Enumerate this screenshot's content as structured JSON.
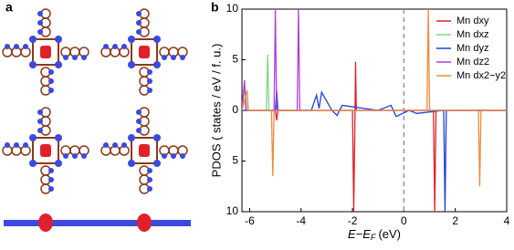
{
  "panel_labels": [
    "a",
    "b"
  ],
  "chart_data": {
    "type": "line",
    "y_label": "PDOS ( states / eV / f. u.)",
    "x_label": {
      "main": "E−E",
      "sub": "F",
      "unit": "(eV)"
    },
    "xlim": [
      -6.3,
      4
    ],
    "xticks": [
      -6,
      -4,
      -2,
      0,
      2,
      4
    ],
    "ylim": [
      -10,
      10
    ],
    "yticks": [
      {
        "value": -10,
        "label": "10"
      },
      {
        "value": -5,
        "label": "5"
      },
      0,
      5,
      10
    ],
    "reference_line_x": 0,
    "legend": "upper right",
    "series": [
      {
        "name": "Mn dxy",
        "color": "#e0202a",
        "x": [
          -6.3,
          -5.0,
          -4.95,
          -4.9,
          -2.0,
          -1.95,
          -1.9,
          -1.88,
          -1.85,
          1.15,
          1.2,
          1.25,
          4
        ],
        "values": [
          0,
          0,
          -1,
          0,
          0,
          -10,
          0,
          4.8,
          0,
          0,
          -10,
          0,
          0
        ]
      },
      {
        "name": "Mn dxz",
        "color": "#7ed97e",
        "x": [
          -6.3,
          -6.2,
          -6.1,
          -5.35,
          -5.3,
          -5.25,
          4
        ],
        "values": [
          0,
          2.5,
          0,
          0,
          5.5,
          0,
          0
        ]
      },
      {
        "name": "Mn dyz",
        "color": "#2040e0",
        "x": [
          -6.3,
          -5.0,
          -4.95,
          -4.9,
          -3.6,
          -3.4,
          -3.3,
          -3.2,
          -2.8,
          -2.6,
          -2.4,
          -1.0,
          -0.5,
          -0.3,
          0.2,
          0.5,
          1.55,
          1.6,
          1.65,
          4
        ],
        "values": [
          0,
          0,
          2,
          0,
          0,
          1.5,
          0.2,
          1.8,
          0,
          -0.5,
          0.5,
          0,
          0.5,
          -0.6,
          0,
          -0.3,
          0,
          -10,
          0,
          0
        ]
      },
      {
        "name": "Mn dz2",
        "color": "#b040d8",
        "x": [
          -6.3,
          -6.2,
          -6.15,
          -5.05,
          -5.0,
          -4.95,
          -4.15,
          -4.1,
          -4.05,
          4
        ],
        "values": [
          0,
          3,
          0,
          0,
          10,
          0,
          0,
          10,
          0,
          0
        ]
      },
      {
        "name": "Mn dx2−y2",
        "color": "#f08a3c",
        "x": [
          -6.3,
          -6.1,
          -6.05,
          -5.15,
          -5.1,
          -5.05,
          0.9,
          0.95,
          1.0,
          2.9,
          2.95,
          3.0,
          4
        ],
        "values": [
          0,
          2,
          0,
          0,
          -6.5,
          0,
          0,
          10,
          0,
          0,
          -7.5,
          0,
          0
        ]
      }
    ]
  }
}
